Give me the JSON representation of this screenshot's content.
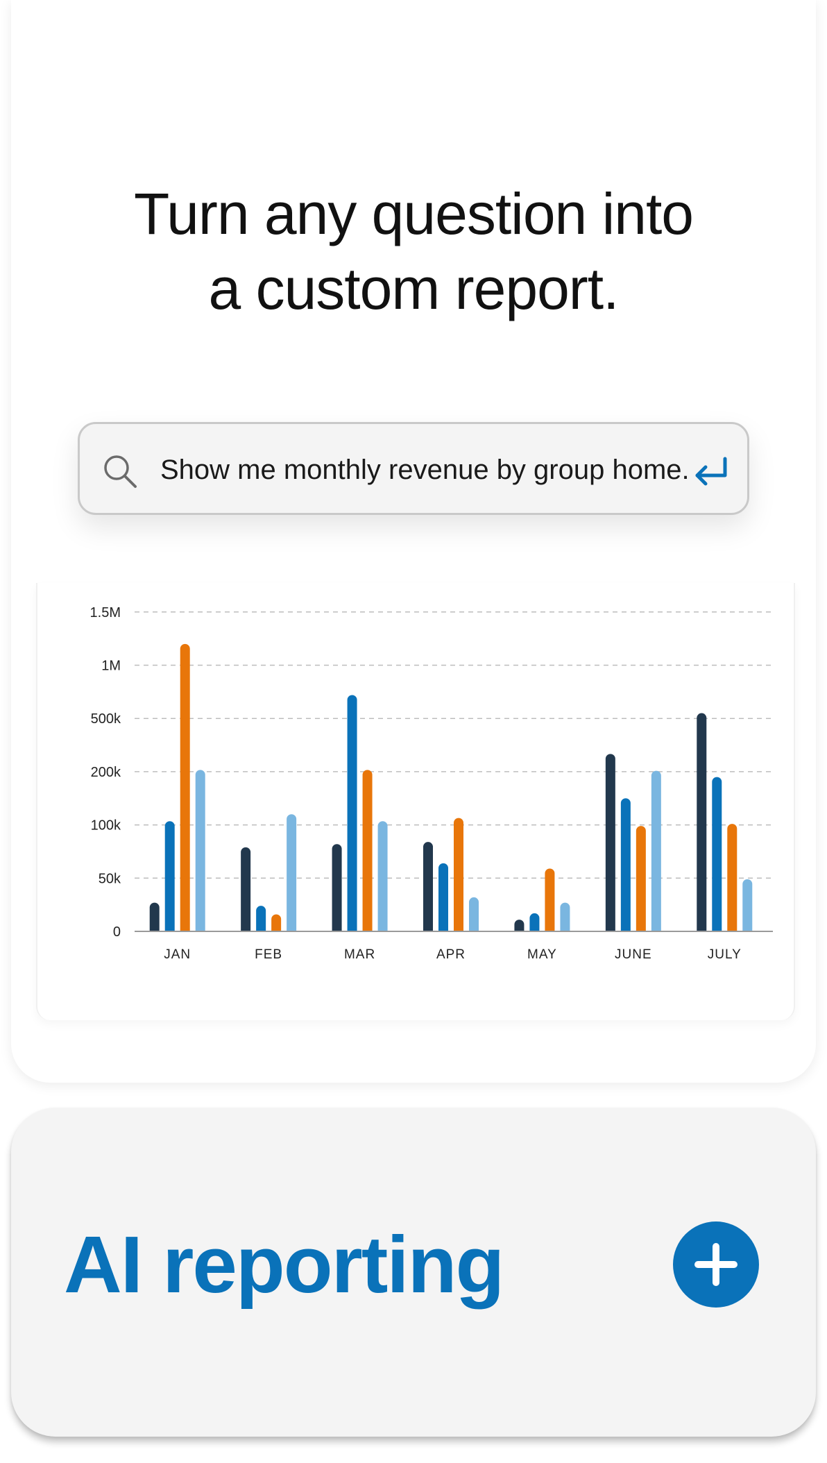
{
  "headline": {
    "line1": "Turn any question into",
    "line2": "a custom report."
  },
  "search": {
    "query": "Show me monthly revenue by group home.",
    "icon": "search-icon",
    "submit_icon": "enter-arrow-icon"
  },
  "colors": {
    "accent": "#0a72b9",
    "series": [
      "#22384d",
      "#0a72b9",
      "#e8760a",
      "#7ab6e0"
    ],
    "grid": "#bdbdbd",
    "axis_text": "#222222"
  },
  "chart_data": {
    "type": "bar",
    "categories": [
      "JAN",
      "FEB",
      "MAR",
      "APR",
      "MAY",
      "JUNE",
      "JULY"
    ],
    "y_ticks": [
      "0",
      "50k",
      "100k",
      "200k",
      "500k",
      "1M",
      "1.5M"
    ],
    "y_tick_values": [
      0,
      50000,
      100000,
      200000,
      500000,
      1000000,
      1500000
    ],
    "series": [
      {
        "values": [
          27000,
          79000,
          82000,
          84000,
          11000,
          300000,
          550000
        ]
      },
      {
        "values": [
          107000,
          24000,
          720000,
          64000,
          17000,
          150000,
          190000
        ]
      },
      {
        "values": [
          1200000,
          16000,
          210000,
          113000,
          59000,
          99000,
          102000
        ]
      },
      {
        "values": [
          210000,
          120000,
          107000,
          32000,
          27000,
          205000,
          49000
        ]
      }
    ],
    "grid": "dashed horizontal",
    "legend": "none",
    "title": "",
    "xlabel": "",
    "ylabel": ""
  },
  "feature": {
    "title": "AI reporting",
    "button_icon": "plus-icon"
  }
}
